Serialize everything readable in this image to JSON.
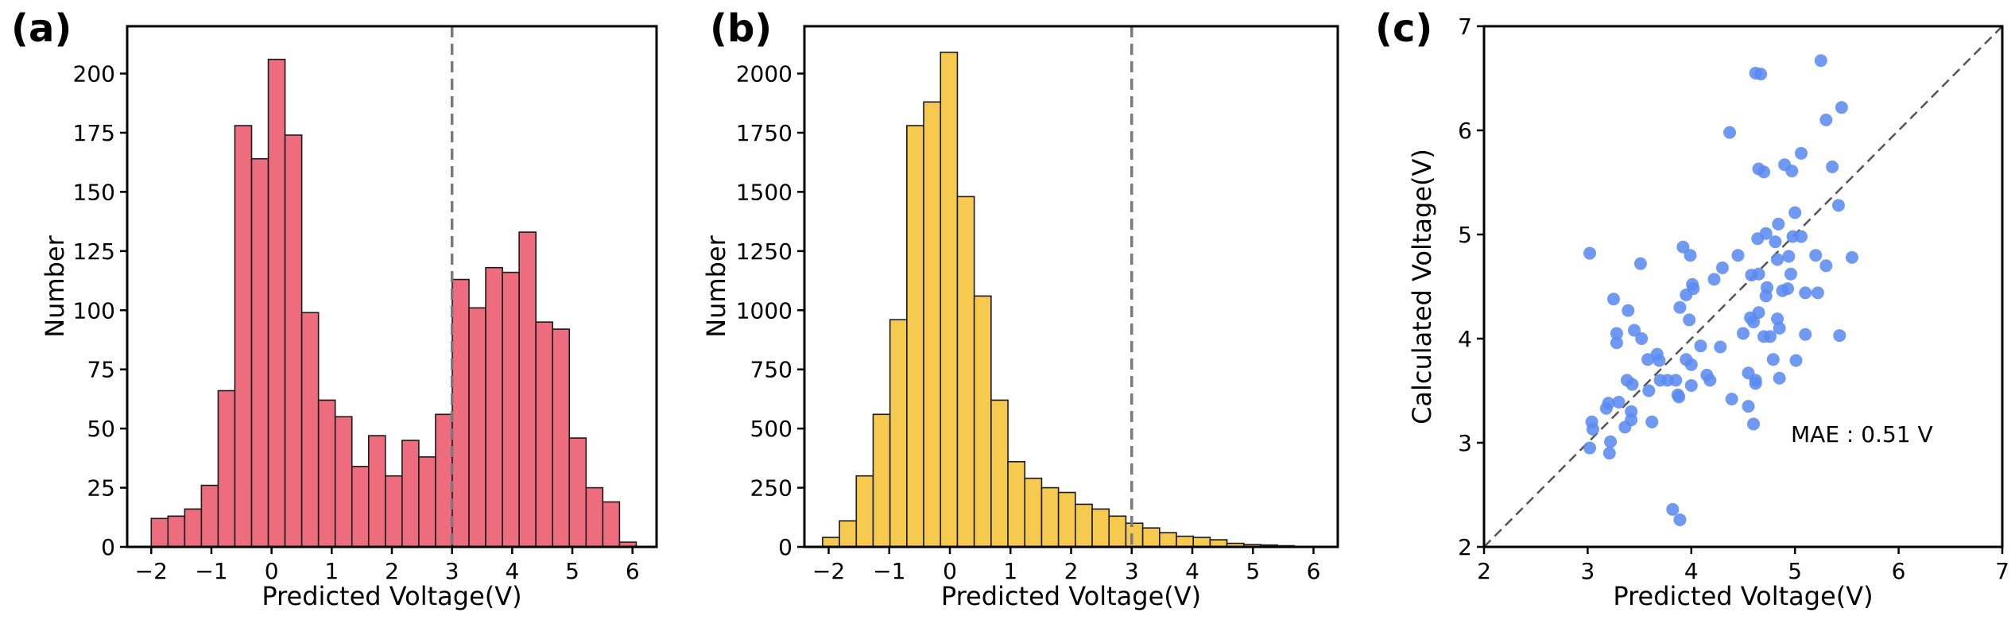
{
  "chart_data": [
    {
      "panel": "(a)",
      "type": "bar",
      "xlabel": "Predicted Voltage(V)",
      "ylabel": "Number",
      "xlim": [
        -2.4,
        6.4
      ],
      "ylim": [
        0,
        220
      ],
      "xticks": [
        -2,
        -1,
        0,
        1,
        2,
        3,
        4,
        5,
        6
      ],
      "xtick_labels": [
        "−2",
        "−1",
        "0",
        "1",
        "2",
        "3",
        "4",
        "5",
        "6"
      ],
      "yticks": [
        0,
        25,
        50,
        75,
        100,
        125,
        150,
        175,
        200
      ],
      "bin_start": -2.0,
      "bin_width": 0.278,
      "values": [
        12,
        13,
        16,
        26,
        66,
        178,
        164,
        206,
        174,
        99,
        62,
        55,
        34,
        47,
        30,
        45,
        38,
        56,
        113,
        101,
        118,
        116,
        133,
        95,
        92,
        46,
        25,
        19,
        2
      ],
      "vline": 3,
      "bar_color": "#ED6C7E"
    },
    {
      "panel": "(b)",
      "type": "bar",
      "xlabel": "Predicted Voltage(V)",
      "ylabel": "Number",
      "xlim": [
        -2.4,
        6.4
      ],
      "ylim": [
        0,
        2200
      ],
      "xticks": [
        -2,
        -1,
        0,
        1,
        2,
        3,
        4,
        5,
        6
      ],
      "xtick_labels": [
        "−2",
        "−1",
        "0",
        "1",
        "2",
        "3",
        "4",
        "5",
        "6"
      ],
      "yticks": [
        0,
        250,
        500,
        750,
        1000,
        1250,
        1500,
        1750,
        2000
      ],
      "bin_start": -2.1,
      "bin_width": 0.278,
      "values": [
        40,
        110,
        300,
        560,
        960,
        1780,
        1880,
        2090,
        1480,
        1060,
        620,
        360,
        290,
        250,
        230,
        180,
        160,
        130,
        100,
        80,
        60,
        45,
        40,
        30,
        15,
        10,
        8,
        5,
        2,
        1
      ],
      "vline": 3,
      "bar_color": "#F6C94F"
    },
    {
      "panel": "(c)",
      "type": "scatter",
      "xlabel": "Predicted Voltage(V)",
      "ylabel": "Calculated Voltage(V)",
      "xlim": [
        2,
        7
      ],
      "ylim": [
        2,
        7
      ],
      "xticks": [
        2,
        3,
        4,
        5,
        6,
        7
      ],
      "yticks": [
        2,
        3,
        4,
        5,
        6,
        7
      ],
      "diagonal": true,
      "annotation": "MAE  : 0.51 V",
      "point_color": "#5B8BF0",
      "points": [
        [
          4.62,
          6.55
        ],
        [
          4.67,
          6.54
        ],
        [
          5.25,
          6.67
        ],
        [
          4.37,
          5.98
        ],
        [
          5.45,
          6.22
        ],
        [
          5.3,
          6.1
        ],
        [
          4.65,
          5.63
        ],
        [
          4.7,
          5.6
        ],
        [
          4.9,
          5.67
        ],
        [
          4.97,
          5.61
        ],
        [
          5.06,
          5.78
        ],
        [
          5.36,
          5.65
        ],
        [
          5.0,
          5.21
        ],
        [
          5.42,
          5.28
        ],
        [
          4.98,
          4.98
        ],
        [
          4.72,
          5.01
        ],
        [
          4.81,
          4.93
        ],
        [
          4.64,
          4.96
        ],
        [
          5.06,
          4.98
        ],
        [
          3.92,
          4.88
        ],
        [
          3.99,
          4.8
        ],
        [
          3.02,
          4.82
        ],
        [
          4.84,
          5.1
        ],
        [
          4.96,
          4.62
        ],
        [
          5.2,
          4.8
        ],
        [
          5.55,
          4.78
        ],
        [
          5.3,
          4.7
        ],
        [
          4.83,
          4.76
        ],
        [
          4.94,
          4.79
        ],
        [
          4.58,
          4.61
        ],
        [
          4.65,
          4.62
        ],
        [
          4.45,
          4.8
        ],
        [
          4.3,
          4.68
        ],
        [
          4.22,
          4.57
        ],
        [
          4.01,
          4.52
        ],
        [
          4.02,
          4.48
        ],
        [
          3.95,
          4.42
        ],
        [
          3.51,
          4.72
        ],
        [
          4.73,
          4.49
        ],
        [
          4.88,
          4.46
        ],
        [
          4.93,
          4.48
        ],
        [
          5.1,
          4.44
        ],
        [
          5.22,
          4.44
        ],
        [
          4.72,
          4.41
        ],
        [
          3.25,
          4.38
        ],
        [
          3.89,
          4.3
        ],
        [
          3.98,
          4.18
        ],
        [
          3.39,
          4.27
        ],
        [
          4.65,
          4.25
        ],
        [
          4.57,
          4.2
        ],
        [
          4.83,
          4.19
        ],
        [
          4.6,
          4.16
        ],
        [
          4.85,
          4.1
        ],
        [
          3.28,
          4.05
        ],
        [
          3.45,
          4.08
        ],
        [
          3.52,
          4.0
        ],
        [
          3.28,
          3.96
        ],
        [
          4.5,
          4.05
        ],
        [
          4.7,
          4.02
        ],
        [
          4.76,
          4.02
        ],
        [
          5.1,
          4.04
        ],
        [
          5.43,
          4.03
        ],
        [
          4.09,
          3.93
        ],
        [
          4.28,
          3.92
        ],
        [
          3.67,
          3.85
        ],
        [
          3.69,
          3.79
        ],
        [
          3.58,
          3.8
        ],
        [
          3.95,
          3.8
        ],
        [
          4.0,
          3.75
        ],
        [
          4.79,
          3.8
        ],
        [
          5.01,
          3.79
        ],
        [
          4.55,
          3.67
        ],
        [
          4.15,
          3.65
        ],
        [
          4.62,
          3.6
        ],
        [
          4.85,
          3.62
        ],
        [
          3.38,
          3.6
        ],
        [
          3.43,
          3.56
        ],
        [
          3.59,
          3.5
        ],
        [
          3.7,
          3.6
        ],
        [
          3.77,
          3.6
        ],
        [
          3.85,
          3.6
        ],
        [
          4.0,
          3.55
        ],
        [
          4.18,
          3.6
        ],
        [
          4.62,
          3.57
        ],
        [
          3.87,
          3.46
        ],
        [
          3.88,
          3.44
        ],
        [
          3.3,
          3.39
        ],
        [
          3.2,
          3.38
        ],
        [
          3.18,
          3.33
        ],
        [
          3.42,
          3.3
        ],
        [
          4.39,
          3.42
        ],
        [
          4.55,
          3.35
        ],
        [
          3.62,
          3.2
        ],
        [
          3.42,
          3.22
        ],
        [
          3.36,
          3.15
        ],
        [
          4.6,
          3.18
        ],
        [
          3.04,
          3.2
        ],
        [
          3.05,
          3.13
        ],
        [
          3.22,
          3.01
        ],
        [
          3.21,
          2.9
        ],
        [
          3.02,
          2.95
        ],
        [
          3.82,
          2.36
        ],
        [
          3.89,
          2.26
        ]
      ]
    }
  ]
}
